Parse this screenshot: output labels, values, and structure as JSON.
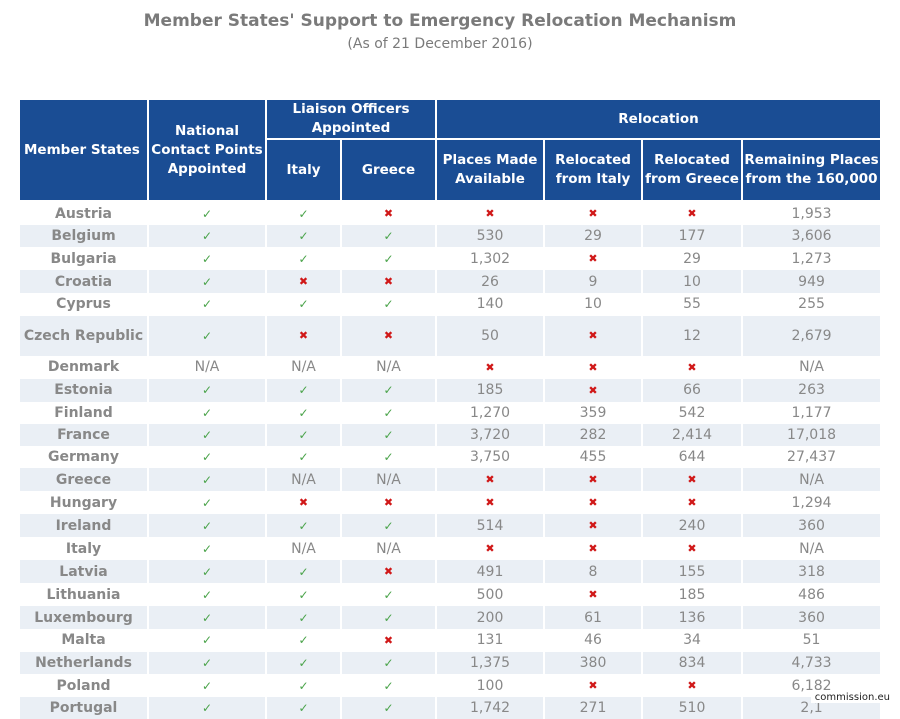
{
  "title": "Member States' Support to Emergency Relocation Mechanism",
  "subtitle": "(As of 21 December 2016)",
  "headers": {
    "member_states": "Member States",
    "national_contact": "National Contact Points Appointed",
    "liaison": "Liaison Officers Appointed",
    "relocation": "Relocation",
    "italy": "Italy",
    "greece": "Greece",
    "places_made_available": "Places Made Available",
    "relocated_from_italy": "Relocated from Italy",
    "relocated_from_greece": "Relocated from Greece",
    "remaining_places": "Remaining Places from the 160,000"
  },
  "rows": [
    {
      "state": "Austria",
      "ncp": "check",
      "lo_italy": "check",
      "lo_greece": "cross",
      "places": "cross",
      "from_italy": "cross",
      "from_greece": "cross",
      "remaining": "1,953"
    },
    {
      "state": "Belgium",
      "ncp": "check",
      "lo_italy": "check",
      "lo_greece": "check",
      "places": "530",
      "from_italy": "29",
      "from_greece": "177",
      "remaining": "3,606"
    },
    {
      "state": "Bulgaria",
      "ncp": "check",
      "lo_italy": "check",
      "lo_greece": "check",
      "places": "1,302",
      "from_italy": "cross",
      "from_greece": "29",
      "remaining": "1,273"
    },
    {
      "state": "Croatia",
      "ncp": "check",
      "lo_italy": "cross",
      "lo_greece": "cross",
      "places": "26",
      "from_italy": "9",
      "from_greece": "10",
      "remaining": "949"
    },
    {
      "state": "Cyprus",
      "ncp": "check",
      "lo_italy": "check",
      "lo_greece": "check",
      "places": "140",
      "from_italy": "10",
      "from_greece": "55",
      "remaining": "255"
    },
    {
      "state": "Czech Republic",
      "ncp": "check",
      "lo_italy": "cross",
      "lo_greece": "cross",
      "places": "50",
      "from_italy": "cross",
      "from_greece": "12",
      "remaining": "2,679",
      "tall": true
    },
    {
      "state": "Denmark",
      "ncp": "N/A",
      "lo_italy": "N/A",
      "lo_greece": "N/A",
      "places": "cross",
      "from_italy": "cross",
      "from_greece": "cross",
      "remaining": "N/A"
    },
    {
      "state": "Estonia",
      "ncp": "check",
      "lo_italy": "check",
      "lo_greece": "check",
      "places": "185",
      "from_italy": "cross",
      "from_greece": "66",
      "remaining": "263"
    },
    {
      "state": "Finland",
      "ncp": "check",
      "lo_italy": "check",
      "lo_greece": "check",
      "places": "1,270",
      "from_italy": "359",
      "from_greece": "542",
      "remaining": "1,177"
    },
    {
      "state": "France",
      "ncp": "check",
      "lo_italy": "check",
      "lo_greece": "check",
      "places": "3,720",
      "from_italy": "282",
      "from_greece": "2,414",
      "remaining": "17,018"
    },
    {
      "state": "Germany",
      "ncp": "check",
      "lo_italy": "check",
      "lo_greece": "check",
      "places": "3,750",
      "from_italy": "455",
      "from_greece": "644",
      "remaining": "27,437"
    },
    {
      "state": "Greece",
      "ncp": "check",
      "lo_italy": "N/A",
      "lo_greece": "N/A",
      "places": "cross",
      "from_italy": "cross",
      "from_greece": "cross",
      "remaining": "N/A"
    },
    {
      "state": "Hungary",
      "ncp": "check",
      "lo_italy": "cross",
      "lo_greece": "cross",
      "places": "cross",
      "from_italy": "cross",
      "from_greece": "cross",
      "remaining": "1,294"
    },
    {
      "state": "Ireland",
      "ncp": "check",
      "lo_italy": "check",
      "lo_greece": "check",
      "places": "514",
      "from_italy": "cross",
      "from_greece": "240",
      "remaining": "360"
    },
    {
      "state": "Italy",
      "ncp": "check",
      "lo_italy": "N/A",
      "lo_greece": "N/A",
      "places": "cross",
      "from_italy": "cross",
      "from_greece": "cross",
      "remaining": "N/A"
    },
    {
      "state": "Latvia",
      "ncp": "check",
      "lo_italy": "check",
      "lo_greece": "cross",
      "places": "491",
      "from_italy": "8",
      "from_greece": "155",
      "remaining": "318"
    },
    {
      "state": "Lithuania",
      "ncp": "check",
      "lo_italy": "check",
      "lo_greece": "check",
      "places": "500",
      "from_italy": "cross",
      "from_greece": "185",
      "remaining": "486"
    },
    {
      "state": "Luxembourg",
      "ncp": "check",
      "lo_italy": "check",
      "lo_greece": "check",
      "places": "200",
      "from_italy": "61",
      "from_greece": "136",
      "remaining": "360"
    },
    {
      "state": "Malta",
      "ncp": "check",
      "lo_italy": "check",
      "lo_greece": "cross",
      "places": "131",
      "from_italy": "46",
      "from_greece": "34",
      "remaining": "51"
    },
    {
      "state": "Netherlands",
      "ncp": "check",
      "lo_italy": "check",
      "lo_greece": "check",
      "places": "1,375",
      "from_italy": "380",
      "from_greece": "834",
      "remaining": "4,733"
    },
    {
      "state": "Poland",
      "ncp": "check",
      "lo_italy": "check",
      "lo_greece": "check",
      "places": "100",
      "from_italy": "cross",
      "from_greece": "cross",
      "remaining": "6,182"
    },
    {
      "state": "Portugal",
      "ncp": "check",
      "lo_italy": "check",
      "lo_greece": "check",
      "places": "1,742",
      "from_italy": "271",
      "from_greece": "510",
      "remaining": "2,1"
    }
  ],
  "symbols": {
    "check": "✓",
    "cross": "✖"
  },
  "colors": {
    "header_bg": "#1a4d94",
    "check": "#4aa34a",
    "cross": "#d01818",
    "number": "#3ea43c",
    "stripe": "#eaeff5"
  },
  "footer": "commission.eu"
}
